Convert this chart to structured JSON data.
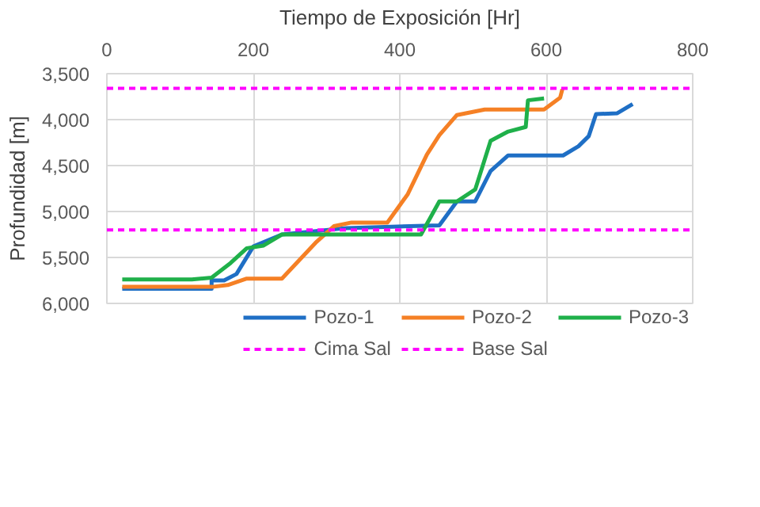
{
  "chart_data": {
    "type": "line",
    "xlabel": "Tiempo de Exposición [Hr]",
    "ylabel": "Profundidad [m]",
    "xlim": [
      0,
      800
    ],
    "xticks": [
      0,
      200,
      400,
      600,
      800
    ],
    "ylim": [
      6000,
      3500
    ],
    "yticks": [
      {
        "value": 3500,
        "label": "3,500"
      },
      {
        "value": 4000,
        "label": "4,000"
      },
      {
        "value": 4500,
        "label": "4,500"
      },
      {
        "value": 5000,
        "label": "5,000"
      },
      {
        "value": 5500,
        "label": "5,500"
      },
      {
        "value": 6000,
        "label": "6,000"
      }
    ],
    "grid": true,
    "legend": "bottom",
    "line_style": "solid",
    "marker": "none",
    "series": [
      {
        "name": "Pozo-1",
        "color": "#1f6fc5",
        "x": [
          21,
          143,
          143,
          160,
          177,
          200,
          239,
          327,
          454,
          478,
          503,
          524,
          548,
          623,
          644,
          658,
          668,
          697,
          718
        ],
        "values": [
          5840,
          5840,
          5750,
          5750,
          5680,
          5380,
          5250,
          5180,
          5150,
          4890,
          4890,
          4560,
          4390,
          4390,
          4290,
          4180,
          3940,
          3930,
          3830
        ]
      },
      {
        "name": "Pozo-2",
        "color": "#f58025",
        "x": [
          21,
          144,
          165,
          191,
          239,
          285,
          310,
          334,
          383,
          411,
          437,
          454,
          478,
          516,
          597,
          619,
          622
        ],
        "values": [
          5820,
          5820,
          5800,
          5730,
          5730,
          5340,
          5160,
          5120,
          5120,
          4810,
          4380,
          4170,
          3950,
          3890,
          3890,
          3760,
          3670
        ]
      },
      {
        "name": "Pozo-3",
        "color": "#1fb04a",
        "x": [
          21,
          116,
          143,
          169,
          191,
          214,
          239,
          429,
          454,
          478,
          503,
          524,
          548,
          572,
          575,
          597
        ],
        "values": [
          5740,
          5740,
          5720,
          5560,
          5400,
          5370,
          5250,
          5250,
          4890,
          4890,
          4760,
          4230,
          4130,
          4080,
          3790,
          3770
        ]
      }
    ],
    "ref_lines": [
      {
        "axis": "y",
        "value": 3660,
        "label": "Cima Sal",
        "color": "#ff00ff",
        "line_style": "dashed"
      },
      {
        "axis": "y",
        "value": 5200,
        "label": "Base Sal",
        "color": "#ff00ff",
        "line_style": "dashed"
      }
    ]
  }
}
